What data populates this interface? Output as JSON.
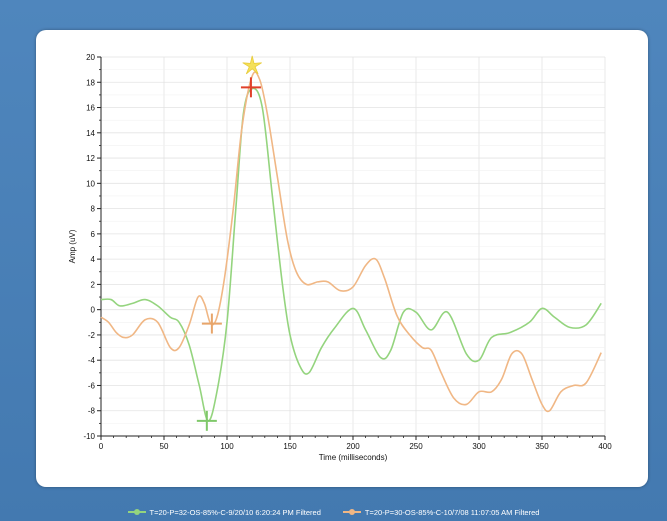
{
  "chart_data": {
    "type": "line",
    "xlabel": "Time (milliseconds)",
    "ylabel": "Amp (uV)",
    "xlim": [
      0,
      400
    ],
    "ylim": [
      -10,
      20
    ],
    "xticks": [
      0,
      50,
      100,
      150,
      200,
      250,
      300,
      350,
      400
    ],
    "yticks": [
      -10,
      -8,
      -6,
      -4,
      -2,
      0,
      2,
      4,
      6,
      8,
      10,
      12,
      14,
      16,
      18,
      20
    ],
    "grid": true,
    "legend_position": "bottom",
    "series": [
      {
        "name": "T=20-P=32-OS-85%-C-9/20/10 6:20:24 PM Filtered",
        "color": "#94d47e",
        "x": [
          0,
          8,
          15,
          25,
          35,
          45,
          55,
          62,
          70,
          78,
          85,
          92,
          100,
          107,
          113,
          120,
          128,
          136,
          144,
          150,
          158,
          165,
          175,
          185,
          200,
          210,
          222,
          230,
          240,
          250,
          262,
          275,
          290,
          300,
          310,
          325,
          340,
          350,
          360,
          372,
          385,
          397
        ],
        "values": [
          0.8,
          0.8,
          0.3,
          0.5,
          0.8,
          0.3,
          -0.6,
          -1.0,
          -2.8,
          -6.0,
          -8.8,
          -6.5,
          -1.0,
          8.0,
          15.5,
          17.5,
          16.0,
          9.0,
          2.0,
          -2.0,
          -4.5,
          -5.0,
          -3.0,
          -1.5,
          0.1,
          -1.6,
          -3.8,
          -3.2,
          -0.2,
          -0.2,
          -1.6,
          -0.2,
          -3.5,
          -4.0,
          -2.2,
          -1.8,
          -1.0,
          0.1,
          -0.6,
          -1.4,
          -1.2,
          0.5
        ]
      },
      {
        "name": "T=20-P=30-OS-85%-C-10/7/08 11:07:05 AM Filtered",
        "color": "#f0b785",
        "x": [
          0,
          6,
          12,
          18,
          25,
          35,
          45,
          55,
          62,
          70,
          77,
          82,
          87,
          92,
          98,
          105,
          112,
          120,
          126,
          132,
          140,
          148,
          155,
          163,
          172,
          180,
          190,
          200,
          210,
          218,
          225,
          235,
          245,
          255,
          262,
          270,
          280,
          290,
          300,
          310,
          318,
          326,
          334,
          342,
          350,
          356,
          365,
          375,
          385,
          397
        ],
        "values": [
          -0.6,
          -1.0,
          -1.8,
          -2.2,
          -2.0,
          -0.8,
          -1.0,
          -3.0,
          -3.0,
          -1.2,
          1.0,
          0.5,
          -1.1,
          -0.6,
          2.5,
          8.0,
          14.5,
          18.5,
          18.2,
          15.5,
          10.5,
          5.5,
          3.0,
          2.0,
          2.2,
          2.2,
          1.5,
          1.8,
          3.5,
          4.0,
          2.5,
          -0.5,
          -2.0,
          -3.0,
          -3.2,
          -5.0,
          -7.0,
          -7.5,
          -6.5,
          -6.5,
          -5.5,
          -3.5,
          -3.5,
          -5.5,
          -7.5,
          -8.0,
          -6.5,
          -6.0,
          -5.8,
          -3.4
        ]
      }
    ],
    "markers": [
      {
        "name": "yellow-star-marker",
        "x": 120,
        "y": 19.3,
        "shape": "star",
        "color": "#f4e05a"
      },
      {
        "name": "red-cross-marker",
        "x": 119,
        "y": 17.6,
        "shape": "cross",
        "color": "#e0402a"
      },
      {
        "name": "orange-cross-marker",
        "x": 88,
        "y": -1.1,
        "shape": "cross",
        "color": "#e8a56a"
      },
      {
        "name": "green-cross-marker",
        "x": 84,
        "y": -8.8,
        "shape": "cross",
        "color": "#7fc86a"
      }
    ]
  }
}
